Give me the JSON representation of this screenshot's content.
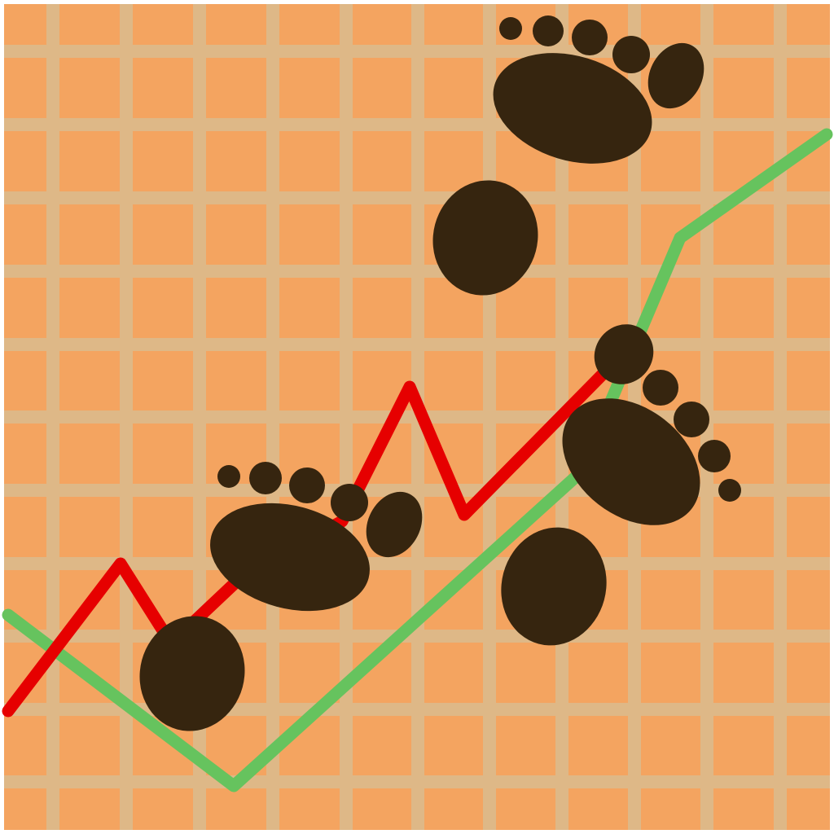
{
  "illustration": {
    "subject": "footprints-over-trend-chart",
    "icon": "footprints-icon",
    "colors": {
      "background": "#F4A460",
      "grid": "#DEB887",
      "line_primary": "#E60000",
      "line_secondary": "#66C35E",
      "footprint": "#36250F",
      "border": "#FFFFFF"
    },
    "grid_visible": true,
    "footprint_count": 3
  }
}
